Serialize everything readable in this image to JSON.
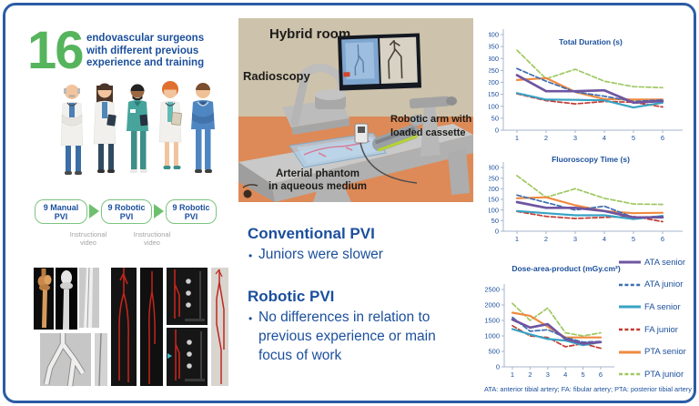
{
  "header": {
    "count": "16",
    "count_color": "#56b45c",
    "lines": [
      "endovascular surgeons",
      "with different previous",
      "experience and training"
    ]
  },
  "flow": {
    "boxes": [
      {
        "top": "9 Manual",
        "bottom": "PVI"
      },
      {
        "top": "9 Robotic",
        "bottom": "PVI"
      },
      {
        "top": "9 Robotic",
        "bottom": "PVI"
      }
    ],
    "captions": [
      "Instructional video",
      "Instructional video"
    ]
  },
  "photo": {
    "labels": {
      "room": "Hybrid room",
      "radioscopy": "Radioscopy",
      "robotic_arm": "Robotic arm with loaded cassette",
      "phantom_line1": "Arterial phantom",
      "phantom_line2": "in aqueous medium"
    }
  },
  "findings": {
    "sections": [
      {
        "title": "Conventional PVI",
        "bullets": [
          "Juniors were slower"
        ]
      },
      {
        "title": "Robotic PVI",
        "bullets": [
          "No differences in relation to previous experience or main focus of work"
        ]
      }
    ]
  },
  "footnote": "ATA: anterior tibial artery; FA: fibular artery; PTA: posterior tibial artery",
  "colors": {
    "accent_green": "#56b45c",
    "navy": "#1b4f9c",
    "border_blue": "#2b5ca6"
  },
  "chart_data": [
    {
      "type": "line",
      "title": "Total Duration (s)",
      "x": [
        1,
        2,
        3,
        4,
        5,
        6
      ],
      "ylim": [
        0,
        400
      ],
      "ystep": 50,
      "series": [
        {
          "name": "ATA senior",
          "color": "#6f55a0",
          "dash": false,
          "width": 2.7,
          "values": [
            230,
            163,
            163,
            167,
            115,
            122
          ]
        },
        {
          "name": "ATA junior",
          "color": "#3e6fb0",
          "dash": true,
          "width": 1.7,
          "values": [
            258,
            205,
            160,
            142,
            120,
            127
          ]
        },
        {
          "name": "FA senior",
          "color": "#38a3c3",
          "dash": false,
          "width": 2.2,
          "values": [
            155,
            128,
            127,
            125,
            95,
            115
          ]
        },
        {
          "name": "FA junior",
          "color": "#c23b33",
          "dash": true,
          "width": 1.7,
          "values": [
            152,
            124,
            110,
            120,
            117,
            97
          ]
        },
        {
          "name": "PTA senior",
          "color": "#ef8b41",
          "dash": false,
          "width": 2.2,
          "values": [
            210,
            218,
            160,
            130,
            128,
            128
          ]
        },
        {
          "name": "PTA junior",
          "color": "#9ec861",
          "dash": true,
          "width": 1.7,
          "values": [
            335,
            215,
            255,
            205,
            182,
            178
          ]
        }
      ]
    },
    {
      "type": "line",
      "title": "Fluoroscopy Time (s)",
      "x": [
        1,
        2,
        3,
        4,
        5,
        6
      ],
      "ylim": [
        0,
        300
      ],
      "ystep": 50,
      "series": [
        {
          "name": "ATA senior",
          "color": "#6f55a0",
          "dash": false,
          "width": 2.7,
          "values": [
            137,
            110,
            110,
            95,
            65,
            65
          ]
        },
        {
          "name": "ATA junior",
          "color": "#3e6fb0",
          "dash": true,
          "width": 1.7,
          "values": [
            170,
            135,
            100,
            118,
            65,
            70
          ]
        },
        {
          "name": "FA senior",
          "color": "#38a3c3",
          "dash": false,
          "width": 2.2,
          "values": [
            95,
            85,
            75,
            75,
            57,
            72
          ]
        },
        {
          "name": "FA junior",
          "color": "#c23b33",
          "dash": true,
          "width": 1.7,
          "values": [
            93,
            70,
            60,
            65,
            70,
            45
          ]
        },
        {
          "name": "PTA senior",
          "color": "#ef8b41",
          "dash": false,
          "width": 2.2,
          "values": [
            155,
            160,
            122,
            95,
            85,
            87
          ]
        },
        {
          "name": "PTA junior",
          "color": "#9ec861",
          "dash": true,
          "width": 1.7,
          "values": [
            262,
            160,
            200,
            155,
            128,
            126
          ]
        }
      ]
    },
    {
      "type": "line",
      "title": "Dose-area-product (mGy.cm²)",
      "x": [
        1,
        2,
        3,
        4,
        5,
        6
      ],
      "ylim": [
        0,
        2500
      ],
      "ystep": 500,
      "series": [
        {
          "name": "ATA senior",
          "color": "#6f55a0",
          "dash": false,
          "width": 2.7,
          "values": [
            1530,
            1270,
            1380,
            900,
            750,
            800
          ]
        },
        {
          "name": "ATA junior",
          "color": "#3e6fb0",
          "dash": true,
          "width": 1.7,
          "values": [
            1600,
            1150,
            1200,
            950,
            800,
            820
          ]
        },
        {
          "name": "FA senior",
          "color": "#38a3c3",
          "dash": false,
          "width": 2.2,
          "values": [
            1220,
            1050,
            900,
            850,
            700,
            800
          ]
        },
        {
          "name": "FA junior",
          "color": "#c23b33",
          "dash": true,
          "width": 1.7,
          "values": [
            1330,
            1000,
            950,
            650,
            750,
            600
          ]
        },
        {
          "name": "PTA senior",
          "color": "#ef8b41",
          "dash": false,
          "width": 2.2,
          "values": [
            1750,
            1650,
            1300,
            950,
            950,
            950
          ]
        },
        {
          "name": "PTA junior",
          "color": "#9ec861",
          "dash": true,
          "width": 1.7,
          "values": [
            2050,
            1500,
            1900,
            1100,
            1000,
            1100
          ]
        }
      ]
    }
  ]
}
